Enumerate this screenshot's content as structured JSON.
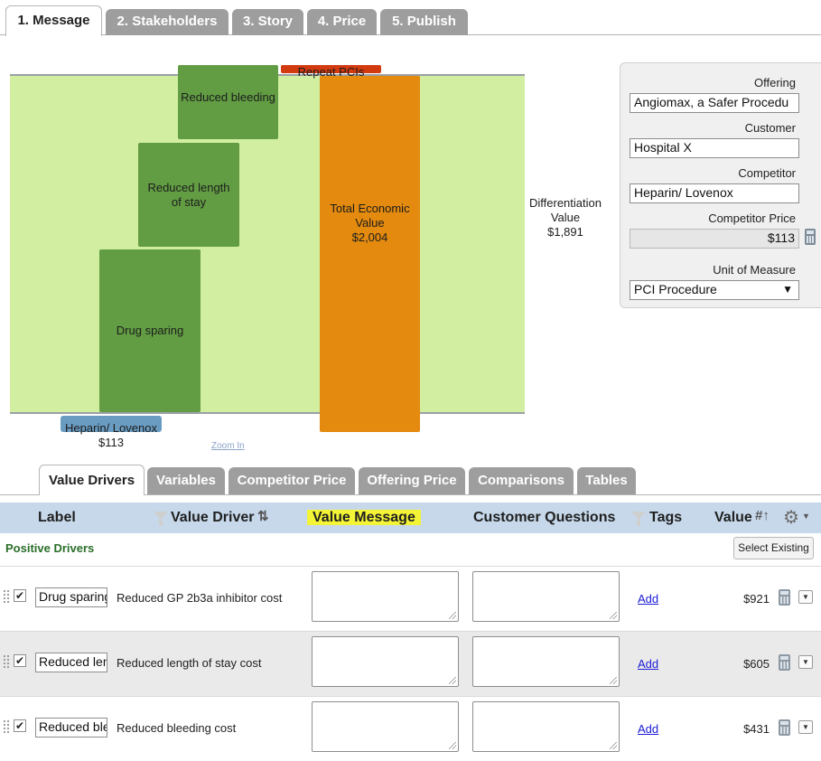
{
  "top_tabs": [
    {
      "label": "1. Message",
      "active": true
    },
    {
      "label": "2. Stakeholders",
      "active": false
    },
    {
      "label": "3. Story",
      "active": false
    },
    {
      "label": "4. Price",
      "active": false
    },
    {
      "label": "5. Publish",
      "active": false
    }
  ],
  "chart": {
    "bars": {
      "drug_sparing": "Drug sparing",
      "reduced_stay": "Reduced length of stay",
      "reduced_bleeding": "Reduced bleeding",
      "repeat_pcis": "Repeat PCIs",
      "total_line1": "Total Economic",
      "total_line2": "Value",
      "total_value": "$2,004"
    },
    "differentiation_line1": "Differentiation",
    "differentiation_line2": "Value",
    "differentiation_value": "$1,891",
    "competitor_label": "Heparin/ Lovenox",
    "competitor_value": "$113",
    "zoom_link": "Zoom In",
    "colors": {
      "plot_bg": "#d2eea1",
      "driver": "#629d43",
      "total": "#e38a0f",
      "negative": "#d23a10",
      "competitor": "#6a9cc2"
    }
  },
  "panel": {
    "offering_label": "Offering",
    "offering_value": "Angiomax, a Safer Procedu",
    "customer_label": "Customer",
    "customer_value": "Hospital X",
    "competitor_label": "Competitor",
    "competitor_value": "Heparin/ Lovenox",
    "competitor_price_label": "Competitor Price",
    "competitor_price_value": "$113",
    "unit_label": "Unit of Measure",
    "unit_value": "PCI Procedure"
  },
  "bottom_tabs": [
    {
      "label": "Value Drivers",
      "active": true
    },
    {
      "label": "Variables",
      "active": false
    },
    {
      "label": "Competitor Price",
      "active": false
    },
    {
      "label": "Offering Price",
      "active": false
    },
    {
      "label": "Comparisons",
      "active": false
    },
    {
      "label": "Tables",
      "active": false
    }
  ],
  "table": {
    "headers": {
      "label": "Label",
      "value_driver": "Value Driver",
      "value_message": "Value Message",
      "customer_questions": "Customer Questions",
      "tags": "Tags",
      "value": "Value"
    },
    "section_title": "Positive Drivers",
    "select_existing": "Select Existing",
    "rows": [
      {
        "label": "Drug sparing",
        "driver": "Reduced GP 2b3a inhibitor cost",
        "tags_link": "Add",
        "value": "$921",
        "checked": true
      },
      {
        "label": "Reduced length of stay",
        "driver": "Reduced length of stay cost",
        "tags_link": "Add",
        "value": "$605",
        "checked": true
      },
      {
        "label": "Reduced bleeding",
        "driver": "Reduced bleeding cost",
        "tags_link": "Add",
        "value": "$431",
        "checked": true
      }
    ]
  }
}
